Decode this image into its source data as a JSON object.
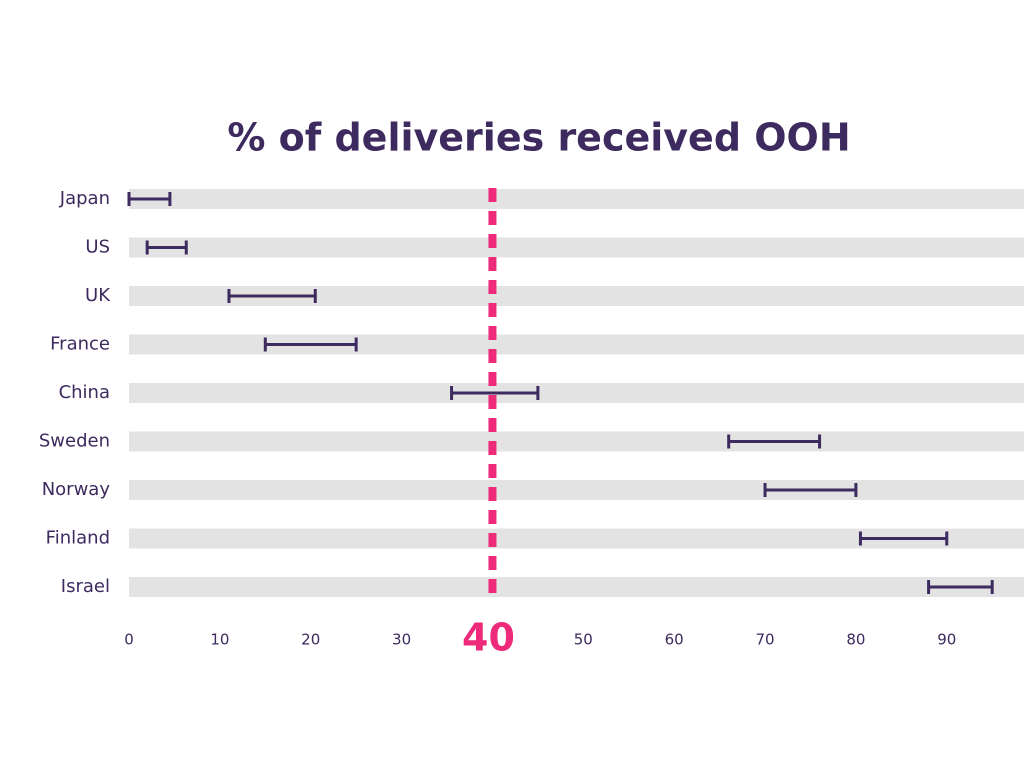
{
  "chart_data": {
    "type": "range",
    "title": "% of deliveries received OOH",
    "categories": [
      "Japan",
      "US",
      "UK",
      "France",
      "China",
      "Sweden",
      "Norway",
      "Finland",
      "Israel"
    ],
    "low": [
      0,
      2,
      11,
      15,
      35.5,
      66,
      70,
      80.5,
      88
    ],
    "high": [
      4.5,
      6.3,
      20.5,
      25,
      45,
      76,
      80,
      90,
      95
    ],
    "color": "#3d2a5e",
    "band_color": "#e3e3e3",
    "xlim": [
      0,
      98.5
    ],
    "xticks": [
      0,
      10,
      20,
      30,
      40,
      50,
      60,
      70,
      80,
      90
    ],
    "reference_line": {
      "value": 40,
      "color": "#ee2a7b"
    }
  }
}
